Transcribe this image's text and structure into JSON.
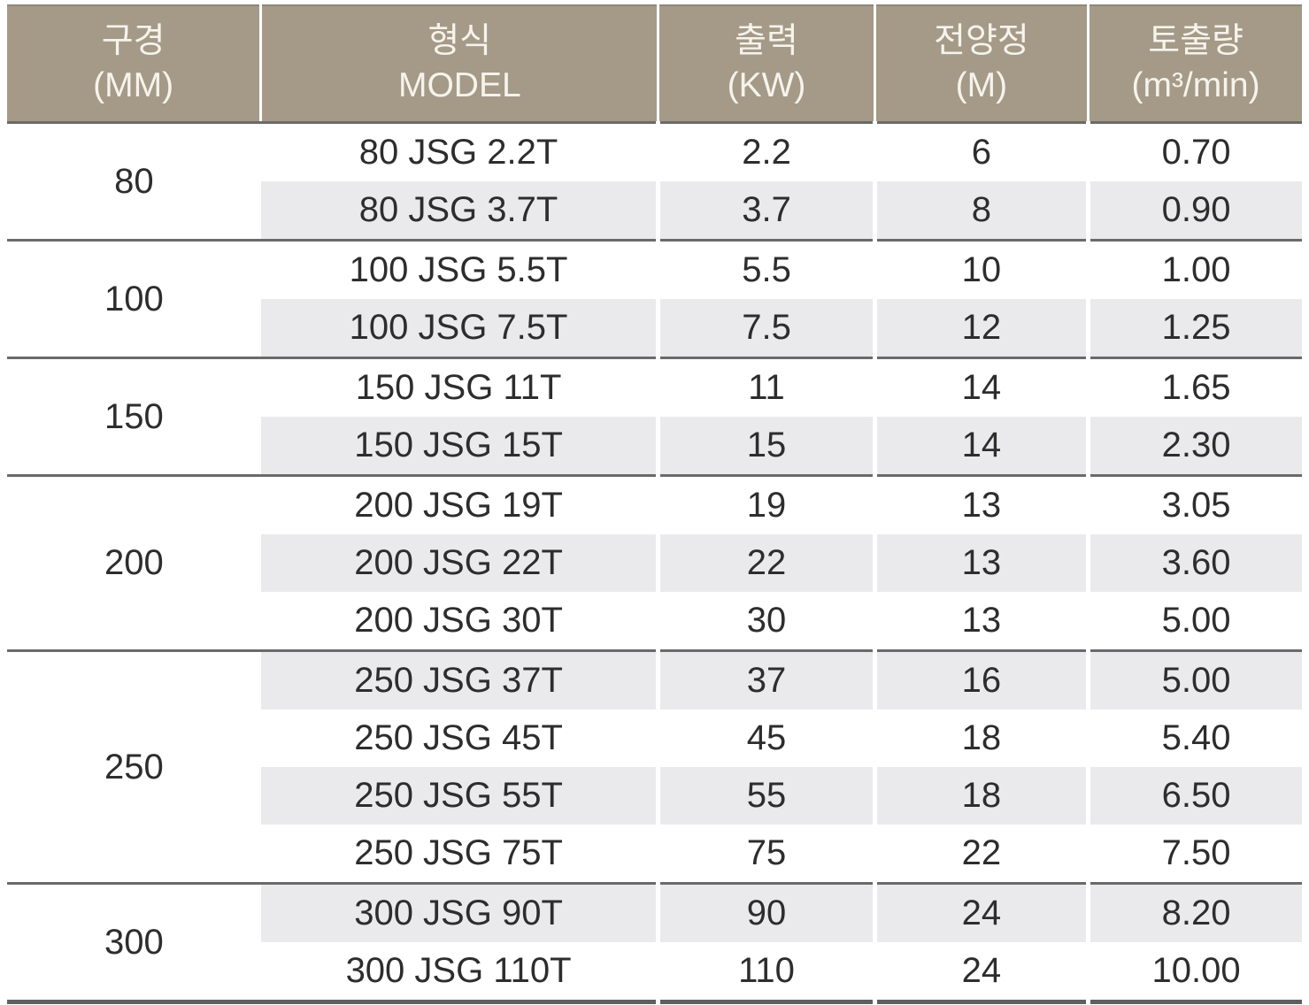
{
  "table": {
    "columns": [
      {
        "label": "구경",
        "unit": "(MM)"
      },
      {
        "label": "형식",
        "unit": "MODEL"
      },
      {
        "label": "출력",
        "unit": "(KW)"
      },
      {
        "label": "전양정",
        "unit": "(M)"
      },
      {
        "label": "토출량",
        "unit": "(m³/min)"
      }
    ],
    "groups": [
      {
        "diameter": "80",
        "rows": [
          {
            "model": "80 JSG 2.2T",
            "output_kw": "2.2",
            "head_m": "6",
            "discharge": "0.70"
          },
          {
            "model": "80 JSG 3.7T",
            "output_kw": "3.7",
            "head_m": "8",
            "discharge": "0.90"
          }
        ]
      },
      {
        "diameter": "100",
        "rows": [
          {
            "model": "100 JSG 5.5T",
            "output_kw": "5.5",
            "head_m": "10",
            "discharge": "1.00"
          },
          {
            "model": "100 JSG 7.5T",
            "output_kw": "7.5",
            "head_m": "12",
            "discharge": "1.25"
          }
        ]
      },
      {
        "diameter": "150",
        "rows": [
          {
            "model": "150 JSG 11T",
            "output_kw": "11",
            "head_m": "14",
            "discharge": "1.65"
          },
          {
            "model": "150 JSG 15T",
            "output_kw": "15",
            "head_m": "14",
            "discharge": "2.30"
          }
        ]
      },
      {
        "diameter": "200",
        "rows": [
          {
            "model": "200 JSG 19T",
            "output_kw": "19",
            "head_m": "13",
            "discharge": "3.05"
          },
          {
            "model": "200 JSG 22T",
            "output_kw": "22",
            "head_m": "13",
            "discharge": "3.60"
          },
          {
            "model": "200 JSG 30T",
            "output_kw": "30",
            "head_m": "13",
            "discharge": "5.00"
          }
        ]
      },
      {
        "diameter": "250",
        "rows": [
          {
            "model": "250 JSG 37T",
            "output_kw": "37",
            "head_m": "16",
            "discharge": "5.00"
          },
          {
            "model": "250 JSG 45T",
            "output_kw": "45",
            "head_m": "18",
            "discharge": "5.40"
          },
          {
            "model": "250 JSG 55T",
            "output_kw": "55",
            "head_m": "18",
            "discharge": "6.50"
          },
          {
            "model": "250 JSG 75T",
            "output_kw": "75",
            "head_m": "22",
            "discharge": "7.50"
          }
        ]
      },
      {
        "diameter": "300",
        "rows": [
          {
            "model": "300 JSG 90T",
            "output_kw": "90",
            "head_m": "24",
            "discharge": "8.20"
          },
          {
            "model": "300 JSG 110T",
            "output_kw": "110",
            "head_m": "24",
            "discharge": "10.00"
          }
        ]
      }
    ]
  },
  "colors": {
    "header_bg": "#a49a87",
    "header_text": "#f6f3ec",
    "stripe": "#eaeaec",
    "rule": "#6a6a6a",
    "bottom_rule": "#5f5f5f",
    "body_text": "#2d2d2d"
  }
}
